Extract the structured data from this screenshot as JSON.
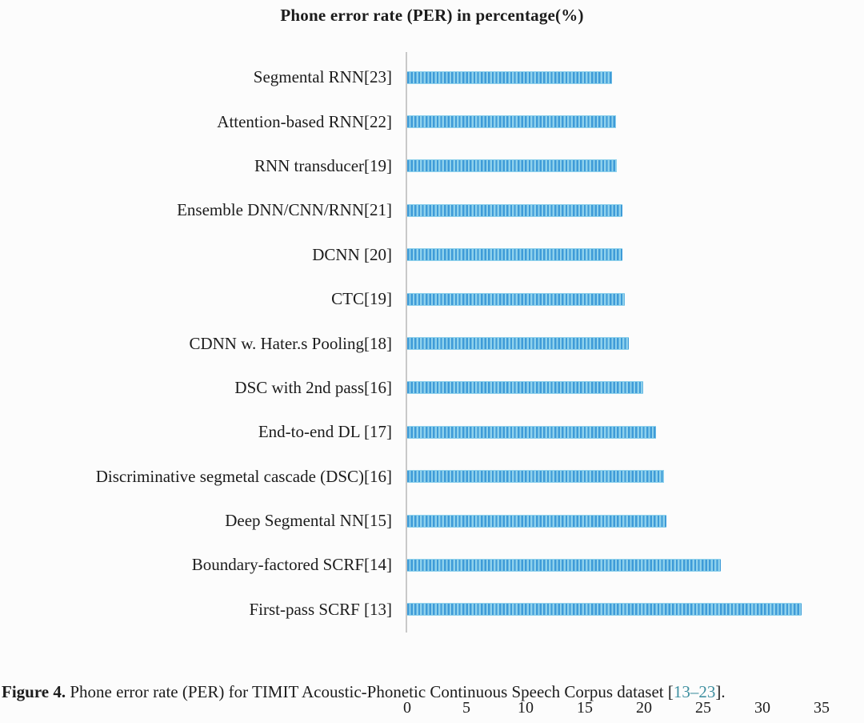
{
  "title": "Phone error rate (PER) in percentage(%)",
  "chart_data": {
    "type": "bar",
    "orientation": "horizontal",
    "title": "Phone error rate (PER) in percentage(%)",
    "categories": [
      "Segmental RNN[23]",
      "Attention-based RNN[22]",
      "RNN transducer[19]",
      "Ensemble DNN/CNN/RNN[21]",
      "DCNN [20]",
      "CTC[19]",
      "CDNN w. Hater.s Pooling[18]",
      "DSC with 2nd pass[16]",
      "End-to-end DL [17]",
      "Discriminative segmetal cascade (DSC)[16]",
      "Deep Segmental NN[15]",
      "Boundary-factored SCRF[14]",
      "First-pass SCRF [13]"
    ],
    "values": [
      17.3,
      17.6,
      17.7,
      18.2,
      18.2,
      18.4,
      18.7,
      19.9,
      21.0,
      21.7,
      21.9,
      26.5,
      33.3
    ],
    "x_ticks": [
      "0",
      "5",
      "10",
      "15",
      "20",
      "25",
      "30",
      "35"
    ],
    "xlim": [
      0,
      35
    ],
    "xlabel": "",
    "ylabel": "",
    "legend": "none",
    "grid": false
  },
  "caption": {
    "figure_label": "Figure 4.",
    "body": " Phone error rate (PER) for TIMIT Acoustic-Phonetic Continuous Speech Corpus dataset [",
    "reference": "13–23",
    "suffix": "]."
  },
  "colors": {
    "bar_stripe_dark": "#3e9bd8",
    "bar_stripe_light": "#8ed1ec",
    "axis_line": "#c9c9c9",
    "text": "#1c1c1c",
    "reference_link": "#3e8fa0",
    "background": "#fcfcfc"
  }
}
